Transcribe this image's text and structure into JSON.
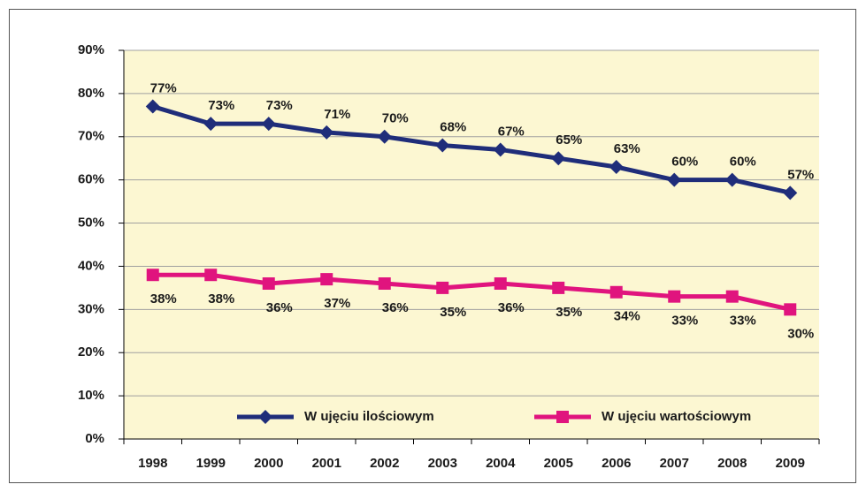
{
  "chart_data": {
    "type": "line",
    "categories": [
      "1998",
      "1999",
      "2000",
      "2001",
      "2002",
      "2003",
      "2004",
      "2005",
      "2006",
      "2007",
      "2008",
      "2009"
    ],
    "series": [
      {
        "name": "W ujęciu ilościowym",
        "color": "#1f2d7a",
        "marker": "diamond",
        "values": [
          77,
          73,
          73,
          71,
          70,
          68,
          67,
          65,
          63,
          60,
          60,
          57
        ],
        "value_labels": [
          "77%",
          "73%",
          "73%",
          "71%",
          "70%",
          "68%",
          "67%",
          "65%",
          "63%",
          "60%",
          "60%",
          "57%"
        ]
      },
      {
        "name": "W ujęciu wartościowym",
        "color": "#e0147e",
        "marker": "square",
        "values": [
          38,
          38,
          36,
          37,
          36,
          35,
          36,
          35,
          34,
          33,
          33,
          30
        ],
        "value_labels": [
          "38%",
          "38%",
          "36%",
          "37%",
          "36%",
          "35%",
          "36%",
          "35%",
          "34%",
          "33%",
          "33%",
          "30%"
        ]
      }
    ],
    "ylim": [
      0,
      90
    ],
    "yticks": [
      {
        "value": 0,
        "label": "0%"
      },
      {
        "value": 10,
        "label": "10%"
      },
      {
        "value": 20,
        "label": "20%"
      },
      {
        "value": 30,
        "label": "30%"
      },
      {
        "value": 40,
        "label": "40%"
      },
      {
        "value": 50,
        "label": "50%"
      },
      {
        "value": 60,
        "label": "60%"
      },
      {
        "value": 70,
        "label": "70%"
      },
      {
        "value": 80,
        "label": "80%"
      },
      {
        "value": 90,
        "label": "90%"
      }
    ],
    "grid": true,
    "legend": "bottom"
  }
}
